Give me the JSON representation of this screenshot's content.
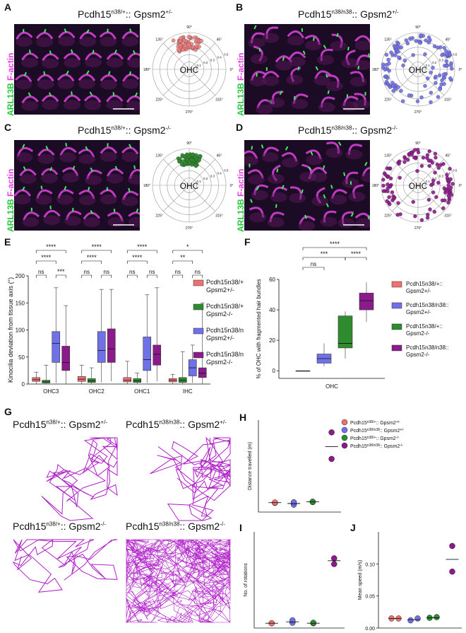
{
  "panels": {
    "A": {
      "letter": "A",
      "title": "Pcdh15",
      "sup": "n38/+",
      "rest": ":: Gpsm2",
      "sup2": "+/-"
    },
    "B": {
      "letter": "B",
      "title": "Pcdh15",
      "sup": "n38/n38",
      "rest": ":: Gpsm2",
      "sup2": "+/-"
    },
    "C": {
      "letter": "C",
      "title": "Pcdh15",
      "sup": "n38/+",
      "rest": ":: Gpsm2",
      "sup2": "-/-"
    },
    "D": {
      "letter": "D",
      "title": "Pcdh15",
      "sup": "n38/n38",
      "rest": ":: Gpsm2",
      "sup2": "-/-"
    },
    "E": {
      "letter": "E"
    },
    "F": {
      "letter": "F"
    },
    "G": {
      "letter": "G"
    },
    "H": {
      "letter": "H"
    },
    "I": {
      "letter": "I"
    },
    "J": {
      "letter": "J"
    }
  },
  "micro_label": {
    "green": "ARL13B",
    "magenta": "F-actin"
  },
  "polar": {
    "angles": [
      "90°",
      "45°",
      "0°",
      "315°",
      "270°",
      "225°",
      "180°",
      "135°"
    ],
    "radii": [
      "0.1",
      "0.2",
      "0.3",
      "0.4",
      "0.5"
    ],
    "center": "OHC",
    "colors": {
      "A": "#f08080",
      "B": "#7070e8",
      "C": "#2e8b2e",
      "D": "#8b1a8b"
    }
  },
  "G_titles": [
    {
      "t": "Pcdh15",
      "sup": "n38/+",
      "rest": ":: Gpsm2",
      "sup2": "+/-"
    },
    {
      "t": "Pcdh15",
      "sup": "n38/n38",
      "rest": ":: Gpsm2",
      "sup2": "+/-"
    },
    {
      "t": "Pcdh15",
      "sup": "n38/+",
      "rest": ":: Gpsm2",
      "sup2": "-/-"
    },
    {
      "t": "Pcdh15",
      "sup": "n38/n38",
      "rest": ":: Gpsm2",
      "sup2": "-/-"
    }
  ],
  "chart_data": [
    {
      "id": "E",
      "type": "box",
      "ylabel": "Kinocilia deviation from tissue axis (°)",
      "ylim": [
        0,
        200
      ],
      "yticks": [
        0,
        50,
        100,
        150,
        200
      ],
      "categories": [
        "OHC3",
        "OHC2",
        "OHC1",
        "IHC"
      ],
      "series": [
        {
          "name": "Pcdh15n38/+:: Gpsm2+/-",
          "color": "#f07070",
          "boxes": [
            [
              0,
              5,
              8,
              12,
              22
            ],
            [
              0,
              5,
              9,
              14,
              35
            ],
            [
              0,
              4,
              7,
              12,
              42
            ],
            [
              0,
              4,
              7,
              10,
              18
            ]
          ]
        },
        {
          "name": "Pcdh15n38/+:: Gpsm2-/-",
          "color": "#2e8b2e",
          "boxes": [
            [
              0,
              2,
              4,
              7,
              35
            ],
            [
              0,
              3,
              6,
              10,
              30
            ],
            [
              0,
              3,
              6,
              10,
              20
            ],
            [
              0,
              3,
              7,
              12,
              60
            ]
          ]
        },
        {
          "name": "Pcdh15n38/n38:: Gpsm2+/-",
          "color": "#7070e8",
          "boxes": [
            [
              2,
              40,
              75,
              97,
              178
            ],
            [
              3,
              40,
              62,
              97,
              175
            ],
            [
              2,
              25,
              45,
              87,
              165
            ],
            [
              2,
              15,
              30,
              45,
              72
            ]
          ]
        },
        {
          "name": "Pcdh15n38/n38:: Gpsm2-/-",
          "color": "#8b1a8b",
          "boxes": [
            [
              0,
              25,
              40,
              70,
              145
            ],
            [
              5,
              40,
              65,
              102,
              175
            ],
            [
              5,
              35,
              55,
              72,
              178
            ],
            [
              0,
              12,
              20,
              30,
              150
            ]
          ]
        }
      ],
      "significance": {
        "OHC3": [
          "****",
          "****",
          "ns",
          "ns",
          "***"
        ],
        "OHC2": [
          "****",
          "****",
          "ns",
          "ns",
          "ns"
        ],
        "OHC1": [
          "****",
          "****",
          "ns",
          "ns",
          "ns"
        ],
        "IHC": [
          "*",
          "**",
          "ns",
          "ns",
          "ns"
        ]
      },
      "legend": [
        {
          "l1": "Pcdh15n38/+::",
          "l2": "Gpsm2+/-"
        },
        {
          "l1": "Pcdh15n38/+::",
          "l2": "Gpsm2-/-"
        },
        {
          "l1": "Pcdh15n38/n38::",
          "l2": "Gpsm2+/-"
        },
        {
          "l1": "Pcdh15n38/n38::",
          "l2": "Gpsm2-/-"
        }
      ]
    },
    {
      "id": "F",
      "type": "box",
      "ylabel": "% of OHC with fragmented hair bundles",
      "ylim": [
        -5,
        60
      ],
      "yticks": [
        0,
        20,
        40,
        60
      ],
      "categories": [
        "OHC"
      ],
      "series": [
        {
          "name": "Pcdh15n38/+:: Gpsm2+/-",
          "color": "#f07070",
          "box": [
            0,
            0,
            0,
            0,
            0
          ]
        },
        {
          "name": "Pcdh15n38/n38:: Gpsm2+/-",
          "color": "#7070e8",
          "box": [
            3,
            5,
            8,
            11,
            18
          ]
        },
        {
          "name": "Pcdh15n38/+:: Gpsm2-/-",
          "color": "#2e8b2e",
          "box": [
            8,
            15,
            18,
            36,
            39
          ]
        },
        {
          "name": "Pcdh15n38/n38:: Gpsm2-/-",
          "color": "#8b1a8b",
          "box": [
            32,
            40,
            46,
            51,
            58
          ]
        }
      ],
      "significance": [
        "****",
        "***",
        "ns",
        "****"
      ],
      "legend": [
        {
          "l1": "Pcdh15n38/+::",
          "l2": "Gpsm2+/-"
        },
        {
          "l1": "Pcdh15n38/n38::",
          "l2": "Gpsm2+/-"
        },
        {
          "l1": "Pcdh15n38/+::",
          "l2": "Gpsm2-/-"
        },
        {
          "l1": "Pcdh15n38/n38::",
          "l2": "Gpsm2-/-"
        }
      ]
    },
    {
      "id": "H",
      "type": "scatter",
      "ylabel": "Distance travelled (m)",
      "ylim": [
        0,
        45
      ],
      "groups": [
        {
          "color": "#f07070",
          "values": [
            4.5,
            4.7
          ],
          "mean": 4.6
        },
        {
          "color": "#7070e8",
          "values": [
            3.6,
            4.8
          ],
          "mean": 4.2
        },
        {
          "color": "#2e8b2e",
          "values": [
            4.9,
            5.1
          ],
          "mean": 5.0
        },
        {
          "color": "#8b1a8b",
          "values": [
            39,
            26
          ],
          "mean": 32
        }
      ],
      "legend": [
        {
          "l1": "Pcdh15",
          "s1": "n38/+",
          "l2": ":: Gpsm2",
          "s2": "+/-",
          "color": "#f07070"
        },
        {
          "l1": "Pcdh15",
          "s1": "n38/n38",
          "l2": ":: Gpsm2",
          "s2": "+/-",
          "color": "#7070e8"
        },
        {
          "l1": "Pcdh15",
          "s1": "n38/+",
          "l2": ":: Gpsm2",
          "s2": "-/-",
          "color": "#2e8b2e"
        },
        {
          "l1": "Pcdh15",
          "s1": "n38/n38",
          "l2": ":: Gpsm2",
          "s2": "-/-",
          "color": "#8b1a8b"
        }
      ]
    },
    {
      "id": "I",
      "type": "scatter",
      "ylabel": "No. of rotations",
      "ylim": [
        0,
        200
      ],
      "groups": [
        {
          "color": "#f07070",
          "values": [
            10,
            10
          ],
          "mean": 10
        },
        {
          "color": "#7070e8",
          "values": [
            11,
            16
          ],
          "mean": 13
        },
        {
          "color": "#2e8b2e",
          "values": [
            10,
            11
          ],
          "mean": 10
        },
        {
          "color": "#8b1a8b",
          "values": [
            145,
            133
          ],
          "mean": 140
        }
      ]
    },
    {
      "id": "J",
      "type": "scatter",
      "ylabel": "Mean speed (m/s)",
      "ylim": [
        0,
        0.15
      ],
      "yticks": [
        "0.00",
        "0.05",
        "0.10"
      ],
      "groups": [
        {
          "color": "#f07070",
          "values": [
            0.015,
            0.015
          ],
          "mean": 0.015
        },
        {
          "color": "#7070e8",
          "values": [
            0.012,
            0.015
          ],
          "mean": 0.013
        },
        {
          "color": "#2e8b2e",
          "values": [
            0.016,
            0.017
          ],
          "mean": 0.016
        },
        {
          "color": "#8b1a8b",
          "values": [
            0.128,
            0.088
          ],
          "mean": 0.107
        }
      ]
    }
  ]
}
